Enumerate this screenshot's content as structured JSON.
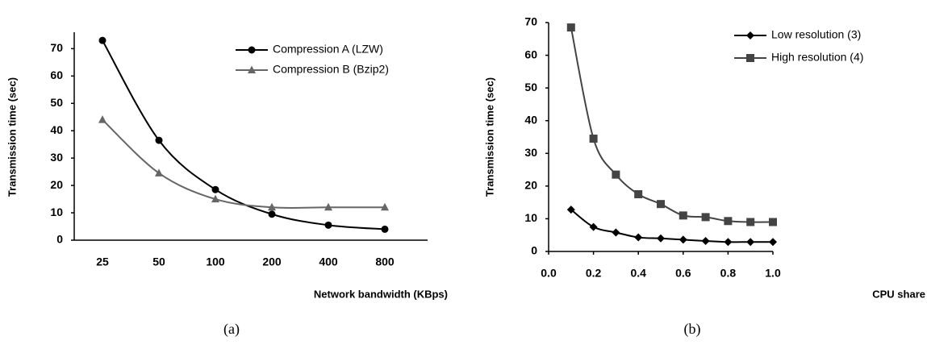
{
  "chart_data": [
    {
      "type": "line",
      "caption": "(a)",
      "x_label": "Network bandwidth (KBps)",
      "y_label": "Transmission time (sec)",
      "categories": [
        "25",
        "50",
        "100",
        "200",
        "400",
        "800"
      ],
      "ylim": [
        0,
        76
      ],
      "yticks": [
        0,
        10,
        20,
        30,
        40,
        50,
        60,
        70
      ],
      "series": [
        {
          "name": "Compression A (LZW)",
          "color": "#000000",
          "marker": "circle",
          "values": [
            73,
            36.5,
            18.5,
            9.5,
            5.5,
            4
          ]
        },
        {
          "name": "Compression B (Bzip2)",
          "color": "#666666",
          "marker": "triangle",
          "values": [
            44,
            24.5,
            15,
            12,
            12,
            12
          ]
        }
      ]
    },
    {
      "type": "line",
      "caption": "(b)",
      "x_label": "CPU share",
      "y_label": "Transmission time (sec)",
      "x": [
        0.1,
        0.2,
        0.3,
        0.4,
        0.5,
        0.6,
        0.7,
        0.8,
        0.9,
        1.0
      ],
      "xlim": [
        0,
        1
      ],
      "xticks": [
        {
          "value": 0,
          "label": "0.0"
        },
        0.2,
        0.4,
        0.6,
        0.8,
        {
          "value": 1,
          "label": "1.0"
        }
      ],
      "ylim": [
        0,
        70
      ],
      "yticks": [
        0,
        10,
        20,
        30,
        40,
        50,
        60,
        70
      ],
      "series": [
        {
          "name": "Low resolution (3)",
          "color": "#000000",
          "marker": "diamond",
          "values": [
            12.8,
            7.5,
            5.8,
            4.3,
            4,
            3.6,
            3.2,
            2.9,
            2.9,
            2.9
          ]
        },
        {
          "name": "High resolution (4)",
          "color": "#444444",
          "marker": "square",
          "values": [
            68.5,
            34.5,
            23.5,
            17.5,
            14.5,
            11,
            10.5,
            9.3,
            9,
            9
          ]
        }
      ]
    }
  ]
}
